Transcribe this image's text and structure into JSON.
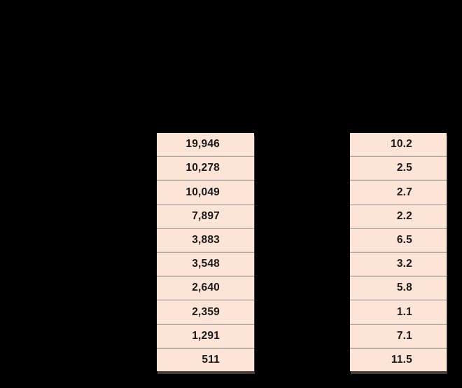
{
  "chart_data": {
    "type": "table",
    "columns": [
      {
        "name": "column_1",
        "values": [
          "19,946",
          "10,278",
          "10,049",
          "7,897",
          "3,883",
          "3,548",
          "2,640",
          "2,359",
          "1,291",
          "511"
        ]
      },
      {
        "name": "column_2",
        "values": [
          "10.2",
          "2.5",
          "2.7",
          "2.2",
          "6.5",
          "3.2",
          "5.8",
          "1.1",
          "7.1",
          "11.5"
        ]
      }
    ],
    "layout": {
      "rows": 10,
      "grid": "horizontal separators between rows",
      "alignment": "right"
    }
  },
  "colors": {
    "page_background": "#000000",
    "cell_background": "#fce4d6",
    "cell_text": "#1a1a1a",
    "separator_light": "#f6efe9",
    "separator_dark": "#9c8f88",
    "shadow": "#453f3b"
  }
}
